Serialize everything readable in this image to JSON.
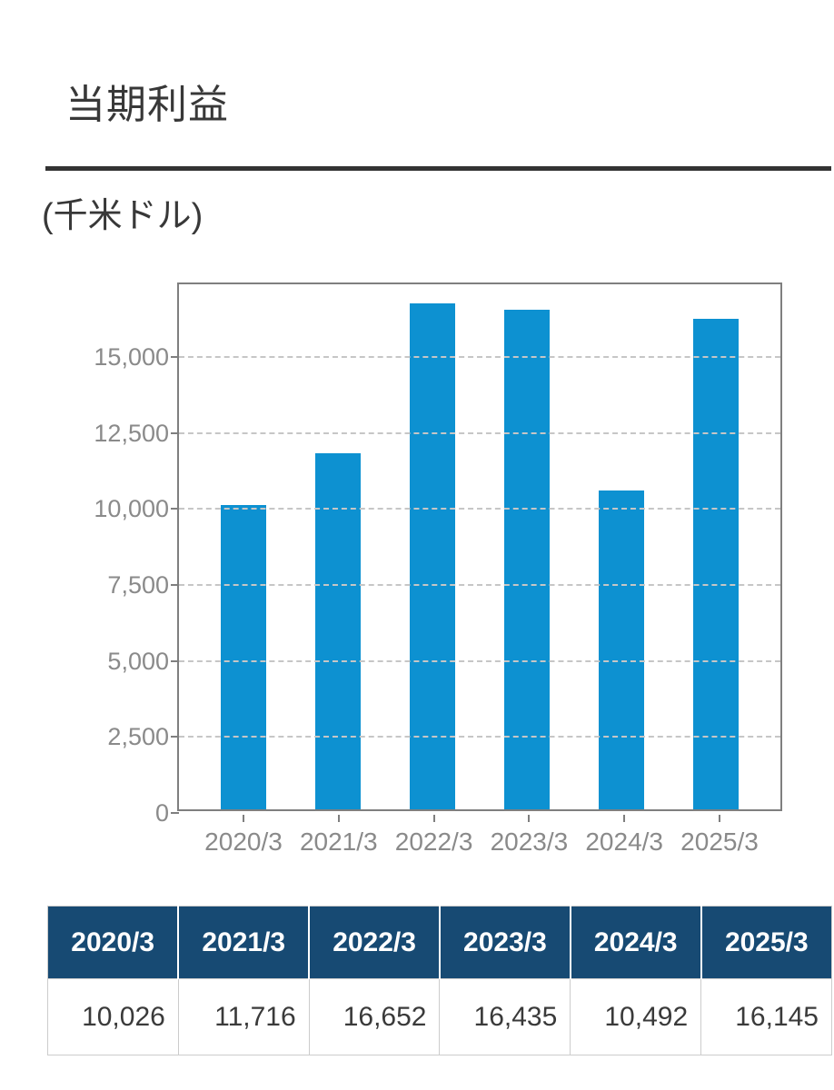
{
  "header": {
    "title": "当期利益",
    "unit_label": "(千米ドル)"
  },
  "chart_data": {
    "type": "bar",
    "title": "当期利益",
    "unit": "千米ドル",
    "categories": [
      "2020/3",
      "2021/3",
      "2022/3",
      "2023/3",
      "2024/3",
      "2025/3"
    ],
    "values": [
      10026,
      11716,
      16652,
      16435,
      10492,
      16145
    ],
    "xlabel": "",
    "ylabel": "",
    "ylim": [
      0,
      17390
    ],
    "y_ticks": [
      0,
      2500,
      5000,
      7500,
      10000,
      12500,
      15000
    ],
    "y_tick_labels": [
      "0",
      "2,500",
      "5,000",
      "7,500",
      "10,000",
      "12,500",
      "15,000"
    ],
    "grid": "horizontal-dashed",
    "legend": "none",
    "bar_color": "#0d91d1"
  },
  "table": {
    "headers": [
      "2020/3",
      "2021/3",
      "2022/3",
      "2023/3",
      "2024/3",
      "2025/3"
    ],
    "values": [
      "10,026",
      "11,716",
      "16,652",
      "16,435",
      "10,492",
      "16,145"
    ]
  },
  "colors": {
    "bar": "#0d91d1",
    "table_header_bg": "#174a73",
    "table_header_text": "#ffffff",
    "axis": "#7f7f7f",
    "axis_label": "#8a8a8a",
    "gridline": "#c6c6c6",
    "title_text": "#383838",
    "divider": "#333333",
    "table_border": "#cccccc"
  }
}
